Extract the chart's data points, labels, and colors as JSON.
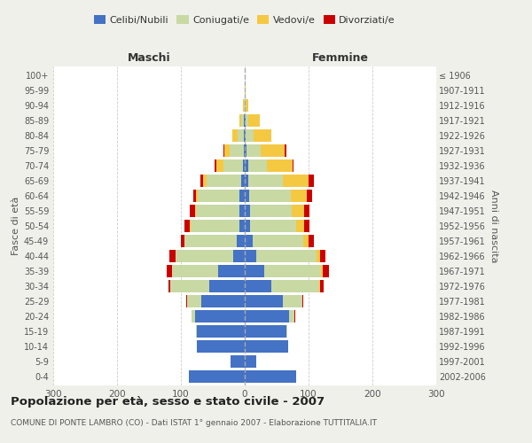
{
  "age_groups": [
    "0-4",
    "5-9",
    "10-14",
    "15-19",
    "20-24",
    "25-29",
    "30-34",
    "35-39",
    "40-44",
    "45-49",
    "50-54",
    "55-59",
    "60-64",
    "65-69",
    "70-74",
    "75-79",
    "80-84",
    "85-89",
    "90-94",
    "95-99",
    "100+"
  ],
  "birth_years": [
    "2002-2006",
    "1997-2001",
    "1992-1996",
    "1987-1991",
    "1982-1986",
    "1977-1981",
    "1972-1976",
    "1967-1971",
    "1962-1966",
    "1957-1961",
    "1952-1956",
    "1947-1951",
    "1942-1946",
    "1937-1941",
    "1932-1936",
    "1927-1931",
    "1922-1926",
    "1917-1921",
    "1912-1916",
    "1907-1911",
    "≤ 1906"
  ],
  "male": {
    "celibi": [
      88,
      22,
      75,
      75,
      78,
      68,
      55,
      42,
      18,
      12,
      9,
      8,
      8,
      5,
      3,
      2,
      1,
      1,
      0,
      0,
      0
    ],
    "coniugati": [
      0,
      0,
      0,
      2,
      5,
      22,
      62,
      72,
      90,
      82,
      76,
      68,
      65,
      55,
      30,
      22,
      10,
      4,
      2,
      0,
      0
    ],
    "vedovi": [
      0,
      0,
      0,
      0,
      0,
      0,
      0,
      0,
      0,
      1,
      1,
      2,
      3,
      5,
      12,
      8,
      8,
      3,
      1,
      0,
      0
    ],
    "divorziati": [
      0,
      0,
      0,
      0,
      1,
      2,
      3,
      8,
      10,
      5,
      8,
      8,
      5,
      5,
      2,
      1,
      0,
      0,
      0,
      0,
      0
    ]
  },
  "female": {
    "nubili": [
      80,
      18,
      68,
      65,
      70,
      60,
      42,
      30,
      18,
      12,
      9,
      8,
      7,
      5,
      5,
      3,
      2,
      1,
      0,
      0,
      0
    ],
    "coniugate": [
      0,
      0,
      0,
      2,
      8,
      30,
      75,
      90,
      95,
      80,
      72,
      65,
      65,
      55,
      30,
      22,
      12,
      5,
      1,
      0,
      0
    ],
    "vedove": [
      0,
      0,
      0,
      0,
      0,
      0,
      1,
      2,
      5,
      8,
      12,
      20,
      25,
      40,
      40,
      38,
      28,
      18,
      5,
      1,
      0
    ],
    "divorziate": [
      0,
      0,
      0,
      0,
      1,
      2,
      5,
      10,
      8,
      8,
      8,
      8,
      8,
      8,
      2,
      2,
      0,
      0,
      0,
      0,
      0
    ]
  },
  "colors": {
    "celibi": "#4472c4",
    "coniugati": "#c8d9a4",
    "vedovi": "#f5c842",
    "divorziati": "#cc0000"
  },
  "title": "Popolazione per età, sesso e stato civile - 2007",
  "subtitle": "COMUNE DI PONTE LAMBRO (CO) - Dati ISTAT 1° gennaio 2007 - Elaborazione TUTTITALIA.IT",
  "xlabel_left": "Maschi",
  "xlabel_right": "Femmine",
  "ylabel_left": "Fasce di età",
  "ylabel_right": "Anni di nascita",
  "xlim": 300,
  "bg_color": "#f0f0eb",
  "plot_bg_color": "#ffffff"
}
